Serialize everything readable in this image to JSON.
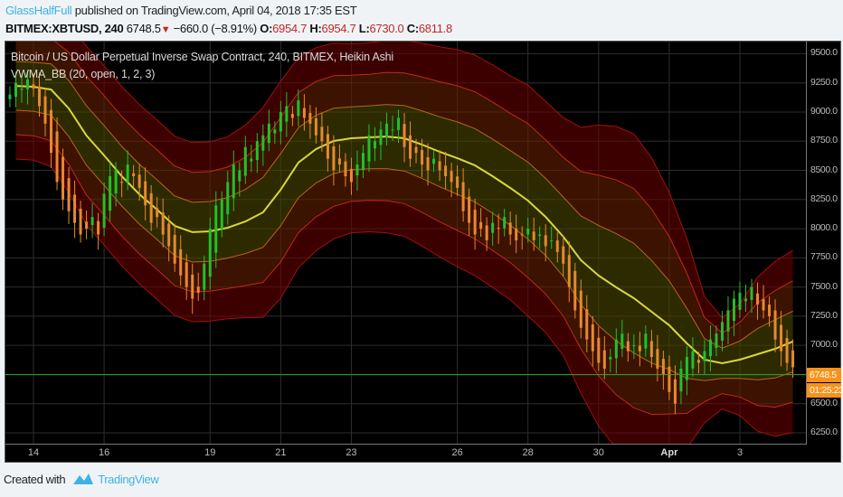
{
  "header": {
    "user": "GlassHalfFull",
    "published": "published on TradingView.com, April 04, 2018 17:35 EST",
    "symbol": "BITMEX:XBTUSD, 240",
    "last": "6748.5",
    "change": "−660.0 (−8.91%)",
    "change_direction": "down",
    "o_label": "O:",
    "o": "6954.7",
    "h_label": "H:",
    "h": "6954.7",
    "l_label": "L:",
    "l": "6730.0",
    "c_label": "C:",
    "c": "6811.8"
  },
  "legend": {
    "series": "Bitcoin / US Dollar Perpetual Inverse Swap Contract, 240, BITMEX, Heikin Ashi",
    "indicator": "VWMA_BB (20, open, 1, 2, 3)"
  },
  "price_axis": {
    "ticks": [
      "9500.0",
      "9250.0",
      "9000.0",
      "8750.0",
      "8500.0",
      "8250.0",
      "8000.0",
      "7750.0",
      "7500.0",
      "7250.0",
      "7000.0",
      "6500.0",
      "6250.0"
    ],
    "last_price_label": "6748.5",
    "countdown": "01:25:23"
  },
  "time_axis": {
    "ticks": [
      {
        "label": "14",
        "date": "2018-03-14"
      },
      {
        "label": "16",
        "date": "2018-03-16"
      },
      {
        "label": "19",
        "date": "2018-03-19"
      },
      {
        "label": "21",
        "date": "2018-03-21"
      },
      {
        "label": "23",
        "date": "2018-03-23"
      },
      {
        "label": "26",
        "date": "2018-03-26"
      },
      {
        "label": "28",
        "date": "2018-03-28"
      },
      {
        "label": "30",
        "date": "2018-03-30"
      },
      {
        "label": "Apr",
        "date": "2018-04-01"
      },
      {
        "label": "3",
        "date": "2018-04-03"
      }
    ]
  },
  "footer": {
    "created_with": "Created with",
    "brand": "TradingView"
  },
  "colors": {
    "up": "#22c02a",
    "down": "#e8892c",
    "mid": "#d8d83a",
    "band1": "#b8661a",
    "band2": "#c02a1a",
    "band3": "#a01010",
    "last_price_line": "#2aa82a",
    "accent": "#3bb3e4",
    "price_box": "#f7931a"
  },
  "chart_data": {
    "type": "candlestick",
    "style": "Heikin Ashi",
    "interval": "240",
    "ylim": [
      6200,
      9550
    ],
    "grid": true,
    "last_price": 6748.5,
    "candles": {
      "start": "2018-03-13 08:00",
      "close": [
        9150,
        9250,
        9200,
        9280,
        9200,
        9050,
        8900,
        8650,
        8400,
        8250,
        8150,
        8050,
        7950,
        8000,
        8100,
        7950,
        8300,
        8450,
        8500,
        8400,
        8550,
        8450,
        8350,
        8200,
        8050,
        8100,
        7950,
        7850,
        7700,
        7600,
        7500,
        7400,
        7450,
        7700,
        8000,
        8200,
        8250,
        8400,
        8550,
        8500,
        8700,
        8600,
        8750,
        8800,
        8900,
        8850,
        9000,
        9050,
        8950,
        9100,
        8950,
        8900,
        8800,
        8750,
        8600,
        8500,
        8550,
        8450,
        8400,
        8550,
        8650,
        8800,
        8750,
        8850,
        8900,
        8850,
        8950,
        8700,
        8600,
        8650,
        8550,
        8500,
        8600,
        8500,
        8450,
        8400,
        8350,
        8150,
        8050,
        7950,
        8000,
        7900,
        8050,
        8000,
        8100,
        7950,
        7900,
        7950,
        8000,
        7900,
        7950,
        7850,
        7900,
        7800,
        7700,
        7500,
        7300,
        7150,
        7050,
        6950,
        6850,
        6800,
        6900,
        7050,
        7100,
        6950,
        7000,
        6950,
        7100,
        6900,
        6800,
        6750,
        6600,
        6500,
        6800,
        6900,
        6950,
        6850,
        6950,
        7050,
        7100,
        7200,
        7300,
        7400,
        7450,
        7400,
        7500,
        7350,
        7300,
        7250,
        7050,
        6950,
        6850,
        6811.8
      ]
    },
    "indicator": {
      "name": "VWMA_BB (20, open, 1, 2, 3)",
      "multipliers": [
        1,
        2,
        3
      ],
      "times": [
        "2018-03-13 12:00",
        "2018-03-14 00:00",
        "2018-03-14 12:00",
        "2018-03-15 00:00",
        "2018-03-15 12:00",
        "2018-03-16 00:00",
        "2018-03-16 12:00",
        "2018-03-17 00:00",
        "2018-03-17 12:00",
        "2018-03-18 00:00",
        "2018-03-18 12:00",
        "2018-03-19 00:00",
        "2018-03-19 12:00",
        "2018-03-20 00:00",
        "2018-03-20 12:00",
        "2018-03-21 00:00",
        "2018-03-21 12:00",
        "2018-03-22 00:00",
        "2018-03-22 12:00",
        "2018-03-23 00:00",
        "2018-03-23 12:00",
        "2018-03-24 00:00",
        "2018-03-24 12:00",
        "2018-03-25 00:00",
        "2018-03-25 12:00",
        "2018-03-26 00:00",
        "2018-03-26 12:00",
        "2018-03-27 00:00",
        "2018-03-27 12:00",
        "2018-03-28 00:00",
        "2018-03-28 12:00",
        "2018-03-29 00:00",
        "2018-03-29 12:00",
        "2018-03-30 00:00",
        "2018-03-30 12:00",
        "2018-03-31 00:00",
        "2018-03-31 12:00",
        "2018-04-01 00:00",
        "2018-04-01 12:00",
        "2018-04-02 00:00",
        "2018-04-02 12:00",
        "2018-04-03 00:00",
        "2018-04-03 12:00",
        "2018-04-04 00:00",
        "2018-04-04 12:00"
      ],
      "mid": [
        9224,
        9217,
        9193,
        9031,
        8798,
        8628,
        8450,
        8295,
        8163,
        8024,
        7970,
        7977,
        8008,
        8062,
        8140,
        8334,
        8566,
        8682,
        8752,
        8775,
        8783,
        8790,
        8775,
        8721,
        8659,
        8605,
        8543,
        8450,
        8349,
        8241,
        8101,
        7931,
        7729,
        7598,
        7497,
        7404,
        7288,
        7172,
        7017,
        6877,
        6846,
        6877,
        6924,
        6970,
        7033
      ],
      "stdev": [
        209,
        210,
        220,
        240,
        255,
        256,
        256,
        256,
        256,
        256,
        256,
        256,
        260,
        275,
        300,
        310,
        300,
        290,
        280,
        270,
        270,
        275,
        280,
        290,
        300,
        310,
        315,
        318,
        320,
        330,
        330,
        340,
        380,
        430,
        460,
        470,
        440,
        380,
        300,
        180,
        130,
        160,
        220,
        250,
        260
      ]
    }
  }
}
